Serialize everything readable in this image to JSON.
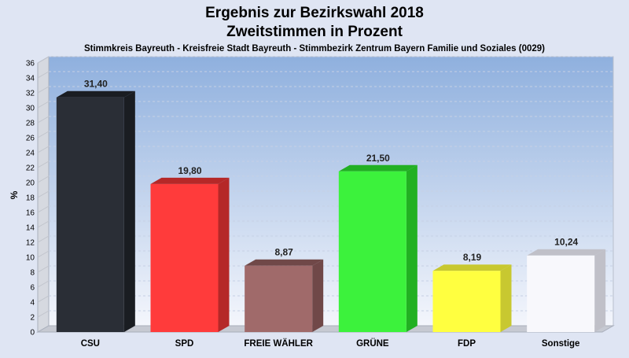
{
  "chart_data": {
    "type": "bar",
    "title_line1": "Ergebnis zur Bezirkswahl 2018",
    "title_line2": "Zweitstimmen in Prozent",
    "subtitle": "Stimmkreis Bayreuth - Kreisfreie Stadt Bayreuth - Stimmbezirk Zentrum Bayern Familie und Soziales (0029)",
    "ylabel": "%",
    "xlabel": "",
    "ylim": [
      0,
      36
    ],
    "ytick_step": 2,
    "grid": true,
    "categories": [
      "CSU",
      "SPD",
      "FREIE WÄHLER",
      "GRÜNE",
      "FDP",
      "Sonstige"
    ],
    "values": [
      31.4,
      19.8,
      8.87,
      21.5,
      8.19,
      10.24
    ],
    "value_labels": [
      "31,40",
      "19,80",
      "8,87",
      "21,50",
      "8,19",
      "10,24"
    ],
    "colors": [
      "#2a2e36",
      "#ff3b3b",
      "#a06a6a",
      "#3cf23c",
      "#ffff40",
      "#f8f8fc"
    ],
    "side_colors": [
      "#1a1d22",
      "#b52828",
      "#704848",
      "#22b022",
      "#c8c830",
      "#c0c0c8"
    ]
  }
}
